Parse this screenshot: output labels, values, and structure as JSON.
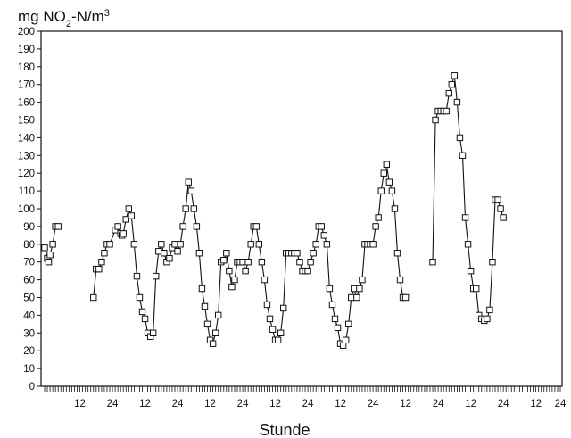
{
  "chart_data": {
    "type": "line",
    "title": "",
    "ylabel_parts": [
      "mg NO",
      "2",
      "-N/m",
      "3"
    ],
    "xlabel": "Stunde",
    "ylim": [
      0,
      200
    ],
    "yticks": [
      0,
      10,
      20,
      30,
      40,
      50,
      60,
      70,
      80,
      90,
      100,
      110,
      120,
      130,
      140,
      150,
      160,
      170,
      180,
      190,
      200
    ],
    "xlim": [
      0,
      190
    ],
    "xtick_labels": [
      {
        "x": 13,
        "label": "12"
      },
      {
        "x": 25,
        "label": "24"
      },
      {
        "x": 37,
        "label": "12"
      },
      {
        "x": 49,
        "label": "24"
      },
      {
        "x": 61,
        "label": "12"
      },
      {
        "x": 73,
        "label": "24"
      },
      {
        "x": 85,
        "label": "12"
      },
      {
        "x": 97,
        "label": "24"
      },
      {
        "x": 109,
        "label": "12"
      },
      {
        "x": 121,
        "label": "24"
      },
      {
        "x": 133,
        "label": "12"
      },
      {
        "x": 145,
        "label": "24"
      },
      {
        "x": 157,
        "label": "12"
      },
      {
        "x": 169,
        "label": "24"
      },
      {
        "x": 181,
        "label": "12"
      },
      {
        "x": 190,
        "label": "24"
      }
    ],
    "marker": "open-square",
    "line_color": "#111111",
    "segments": [
      [
        [
          0,
          78
        ],
        [
          1,
          72
        ],
        [
          1.5,
          70
        ],
        [
          2,
          74
        ],
        [
          3,
          80
        ],
        [
          4,
          90
        ],
        [
          5,
          90
        ]
      ],
      [
        [
          18,
          50
        ],
        [
          19,
          66
        ],
        [
          20,
          66
        ],
        [
          21,
          70
        ],
        [
          22,
          75
        ],
        [
          23,
          80
        ],
        [
          24,
          80
        ],
        [
          26,
          88
        ],
        [
          27,
          90
        ],
        [
          28,
          86
        ],
        [
          28.5,
          85
        ],
        [
          29,
          86
        ],
        [
          30,
          94
        ],
        [
          31,
          100
        ],
        [
          32,
          96
        ],
        [
          33,
          80
        ],
        [
          34,
          62
        ],
        [
          35,
          50
        ],
        [
          36,
          42
        ],
        [
          37,
          38
        ],
        [
          38,
          30
        ],
        [
          39,
          28
        ],
        [
          40,
          30
        ],
        [
          41,
          62
        ],
        [
          42,
          76
        ],
        [
          43,
          80
        ],
        [
          44,
          75
        ],
        [
          45,
          70
        ],
        [
          46,
          72
        ],
        [
          47,
          78
        ],
        [
          48,
          80
        ],
        [
          49,
          76
        ],
        [
          50,
          80
        ],
        [
          51,
          90
        ],
        [
          52,
          100
        ],
        [
          53,
          115
        ],
        [
          54,
          110
        ],
        [
          55,
          100
        ],
        [
          56,
          90
        ],
        [
          57,
          75
        ],
        [
          58,
          55
        ],
        [
          59,
          45
        ],
        [
          60,
          35
        ],
        [
          61,
          26
        ],
        [
          62,
          24
        ],
        [
          63,
          30
        ],
        [
          64,
          40
        ],
        [
          65,
          70
        ],
        [
          66,
          71
        ],
        [
          67,
          75
        ],
        [
          68,
          65
        ],
        [
          69,
          56
        ],
        [
          70,
          60
        ],
        [
          71,
          70
        ],
        [
          72,
          70
        ],
        [
          73,
          70
        ],
        [
          74,
          65
        ],
        [
          75,
          70
        ],
        [
          76,
          80
        ],
        [
          77,
          90
        ],
        [
          78,
          90
        ],
        [
          79,
          80
        ],
        [
          80,
          70
        ],
        [
          81,
          60
        ],
        [
          82,
          46
        ],
        [
          83,
          38
        ],
        [
          84,
          32
        ],
        [
          85,
          26
        ],
        [
          86,
          26
        ],
        [
          87,
          30
        ],
        [
          88,
          44
        ],
        [
          89,
          75
        ],
        [
          90,
          75
        ],
        [
          91,
          75
        ],
        [
          92,
          75
        ],
        [
          93,
          75
        ],
        [
          94,
          70
        ],
        [
          95,
          65
        ],
        [
          96,
          65
        ],
        [
          97,
          65
        ],
        [
          98,
          70
        ],
        [
          99,
          75
        ],
        [
          100,
          80
        ],
        [
          101,
          90
        ],
        [
          102,
          90
        ],
        [
          103,
          85
        ],
        [
          104,
          80
        ],
        [
          105,
          55
        ],
        [
          106,
          46
        ],
        [
          107,
          38
        ],
        [
          108,
          33
        ],
        [
          109,
          24
        ],
        [
          110,
          23
        ],
        [
          111,
          26
        ],
        [
          112,
          35
        ],
        [
          113,
          50
        ],
        [
          114,
          55
        ],
        [
          115,
          50
        ],
        [
          116,
          55
        ],
        [
          117,
          60
        ],
        [
          118,
          80
        ],
        [
          119,
          80
        ],
        [
          120,
          80
        ],
        [
          121,
          80
        ],
        [
          122,
          90
        ],
        [
          123,
          95
        ],
        [
          124,
          110
        ],
        [
          125,
          120
        ],
        [
          126,
          125
        ],
        [
          127,
          115
        ],
        [
          128,
          110
        ],
        [
          129,
          100
        ],
        [
          130,
          75
        ],
        [
          131,
          60
        ],
        [
          132,
          50
        ],
        [
          133,
          50
        ]
      ],
      [
        [
          143,
          70
        ],
        [
          144,
          150
        ],
        [
          145,
          155
        ],
        [
          146,
          155
        ],
        [
          147,
          155
        ],
        [
          148,
          155
        ],
        [
          149,
          165
        ],
        [
          150,
          170
        ],
        [
          151,
          175
        ],
        [
          152,
          160
        ],
        [
          153,
          140
        ],
        [
          154,
          130
        ],
        [
          155,
          95
        ],
        [
          156,
          80
        ],
        [
          157,
          65
        ],
        [
          158,
          55
        ],
        [
          159,
          55
        ],
        [
          160,
          40
        ],
        [
          161,
          38
        ],
        [
          162,
          37
        ],
        [
          163,
          38
        ],
        [
          164,
          43
        ],
        [
          165,
          70
        ],
        [
          166,
          105
        ],
        [
          167,
          105
        ],
        [
          168,
          100
        ],
        [
          169,
          95
        ]
      ]
    ]
  }
}
